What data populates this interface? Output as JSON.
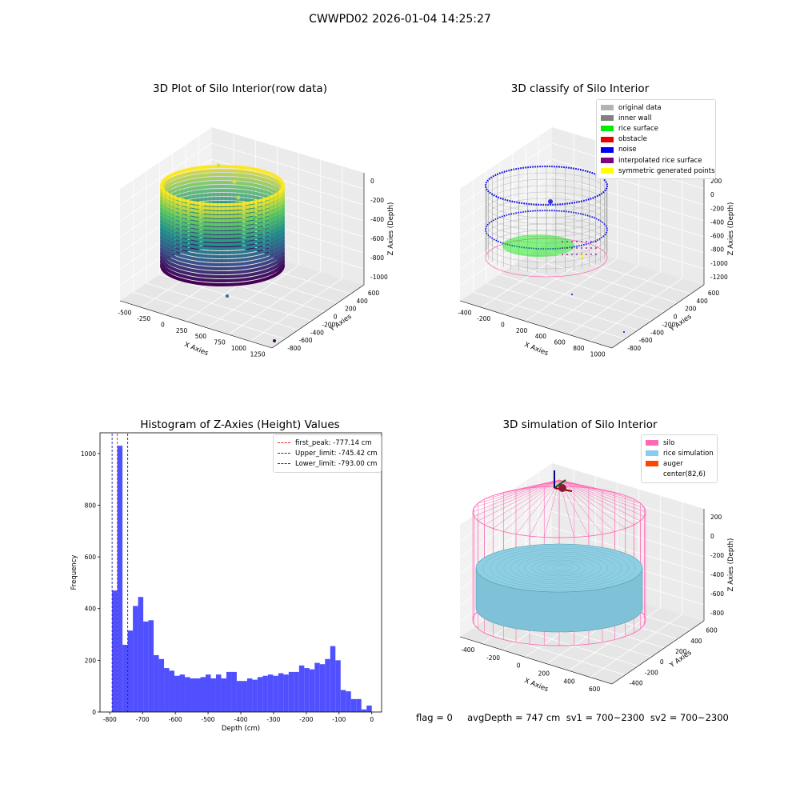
{
  "figure": {
    "title": "CWWPD02 2026-01-04 14:25:27",
    "footer": "flag = 0     avgDepth = 747 cm  sv1 = 700~2300  sv2 = 700~2300"
  },
  "chart_data": [
    {
      "type": "scatter",
      "panel": "top-left",
      "title": "3D Plot of Silo Interior(row data)",
      "xlabel": "X Axies",
      "ylabel": "Y Axies",
      "zlabel": "Z Axies (Depth)",
      "x_ticks": [
        "-500",
        "-250",
        "0",
        "250",
        "500",
        "750",
        "1000",
        "1250"
      ],
      "y_ticks": [
        "600",
        "400",
        "200",
        "0",
        "-200",
        "-400",
        "-600",
        "-800"
      ],
      "z_ticks": [
        "0",
        "-200",
        "-400",
        "-600",
        "-800",
        "-1000"
      ],
      "colormap": "viridis",
      "grid": true
    },
    {
      "type": "scatter",
      "panel": "top-right",
      "title": "3D classify of Silo Interior",
      "xlabel": "X Axies",
      "ylabel": "Y Axies",
      "zlabel": "Z Axies (Depth)",
      "x_ticks": [
        "-400",
        "-200",
        "0",
        "200",
        "400",
        "600",
        "800",
        "1000"
      ],
      "y_ticks": [
        "600",
        "400",
        "200",
        "0",
        "-200",
        "-400",
        "-600",
        "-800"
      ],
      "z_ticks": [
        "200",
        "0",
        "-200",
        "-400",
        "-600",
        "-800",
        "-1000",
        "-1200"
      ],
      "legend": [
        {
          "label": "original data",
          "color": "#b3b3b3"
        },
        {
          "label": "inner wall",
          "color": "#808080"
        },
        {
          "label": "rice surface",
          "color": "#00ee00"
        },
        {
          "label": "obstacle",
          "color": "#ee0000"
        },
        {
          "label": "noise",
          "color": "#0000ee"
        },
        {
          "label": "interpolated rice surface",
          "color": "#800080"
        },
        {
          "label": "symmetric generated points",
          "color": "#ffff00"
        }
      ],
      "legend_position": "top-right",
      "grid": true
    },
    {
      "type": "bar",
      "panel": "bottom-left",
      "title": "Histogram of Z-Axies (Height) Values",
      "xlabel": "Depth (cm)",
      "ylabel": "Frequency",
      "xlim": [
        -830,
        30
      ],
      "ylim": [
        0,
        1080
      ],
      "x_ticks": [
        -800,
        -700,
        -600,
        -500,
        -400,
        -300,
        -200,
        -100,
        0
      ],
      "y_ticks": [
        0,
        200,
        400,
        600,
        800,
        1000
      ],
      "bin_width": 15.86,
      "bin_start": -793,
      "values": [
        470,
        1030,
        260,
        315,
        410,
        445,
        350,
        355,
        220,
        205,
        170,
        160,
        140,
        145,
        135,
        130,
        130,
        135,
        145,
        130,
        145,
        130,
        155,
        155,
        120,
        120,
        130,
        125,
        135,
        140,
        145,
        140,
        150,
        145,
        155,
        155,
        180,
        170,
        165,
        190,
        185,
        205,
        255,
        200,
        85,
        80,
        50,
        50,
        10,
        25
      ],
      "bar_color": "#5050ff",
      "vlines": [
        {
          "label": "first_peak: -777.14 cm",
          "x": -777.14,
          "color": "#ee2222"
        },
        {
          "label": "Upper_limit: -745.42 cm",
          "x": -745.42,
          "color": "#2222cc"
        },
        {
          "label": "Lower_limit: -793.00 cm",
          "x": -793.0,
          "color": "#2222cc"
        }
      ],
      "legend_position": "top-right",
      "grid": false
    },
    {
      "type": "scatter",
      "panel": "bottom-right",
      "title": "3D simulation of Silo Interior",
      "xlabel": "X Axies",
      "ylabel": "Y Axies",
      "zlabel": "Z Axies (Depth)",
      "x_ticks": [
        "-400",
        "-200",
        "0",
        "200",
        "400",
        "600"
      ],
      "y_ticks": [
        "600",
        "400",
        "200",
        "0",
        "-200",
        "-400"
      ],
      "z_ticks": [
        "200",
        "0",
        "-200",
        "-400",
        "-600",
        "-800"
      ],
      "legend": [
        {
          "label": "silo",
          "color": "#ff69b4"
        },
        {
          "label": "rice simulation",
          "color": "#87ceeb"
        },
        {
          "label": "auger",
          "color": "#ff4500"
        },
        {
          "label": "center(82,6)",
          "color": ""
        }
      ],
      "legend_position": "top-right",
      "grid": true
    }
  ]
}
